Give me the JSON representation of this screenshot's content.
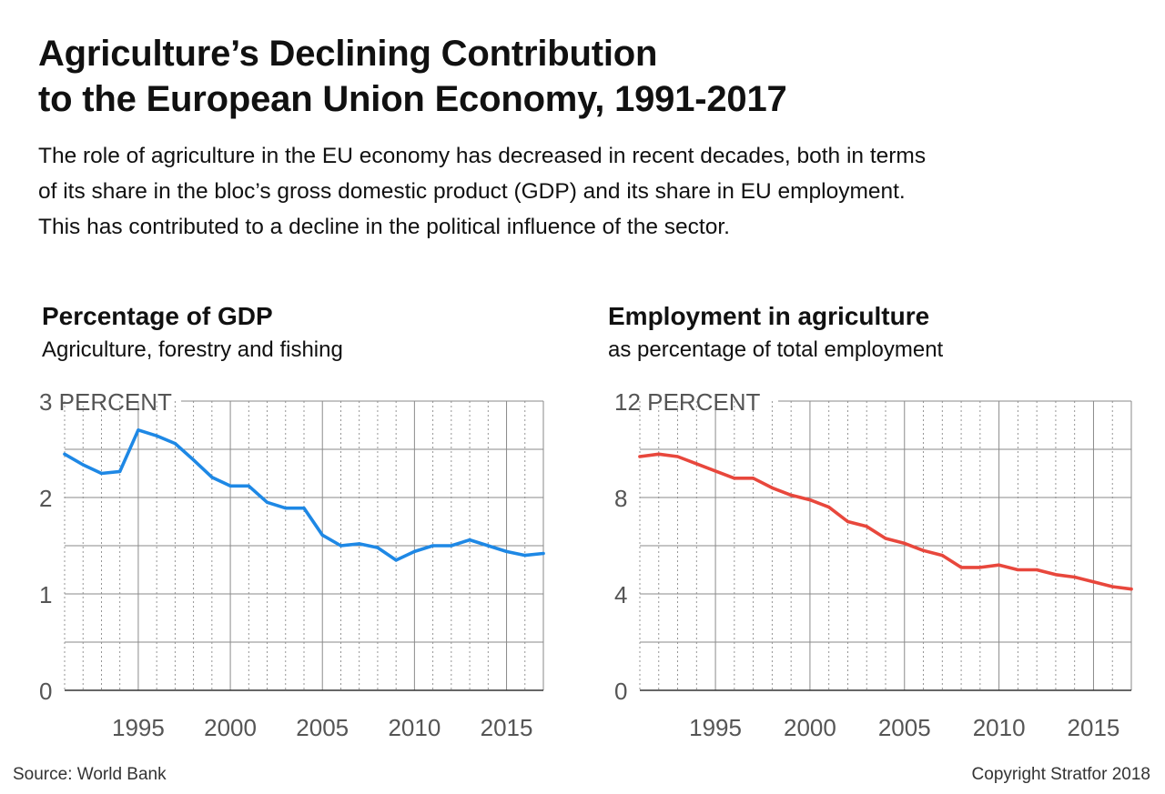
{
  "header": {
    "title_lines": [
      "Agriculture’s Declining Contribution",
      "to the European Union Economy, 1991-2017"
    ],
    "subtitle_lines": [
      "The role of agriculture in the EU economy has decreased in recent decades, both in terms",
      "of its share in the bloc’s gross domestic product (GDP) and its share in EU employment.",
      "This has contributed to a decline in the political influence of the sector."
    ]
  },
  "footer": {
    "source": "Source: World Bank",
    "copyright": "Copyright Stratfor 2018"
  },
  "colors": {
    "gdp_line": "#1e88e5",
    "employment_line": "#e8473c",
    "grid": "#8a8a8a",
    "axis_text": "#555555"
  },
  "chart_data": [
    {
      "type": "line",
      "title": "Percentage of GDP",
      "subtitle": "Agriculture, forestry and fishing",
      "ylabel": "",
      "xlabel": "",
      "x": [
        1991,
        1992,
        1993,
        1994,
        1995,
        1996,
        1997,
        1998,
        1999,
        2000,
        2001,
        2002,
        2003,
        2004,
        2005,
        2006,
        2007,
        2008,
        2009,
        2010,
        2011,
        2012,
        2013,
        2014,
        2015,
        2016,
        2017
      ],
      "series": [
        {
          "values": [
            2.45,
            2.34,
            2.25,
            2.27,
            2.7,
            2.64,
            2.56,
            2.39,
            2.21,
            2.12,
            2.12,
            1.95,
            1.89,
            1.89,
            1.61,
            1.5,
            1.52,
            1.48,
            1.35,
            1.44,
            1.5,
            1.5,
            1.56,
            1.5,
            1.44,
            1.4,
            1.42
          ]
        }
      ],
      "xlim": [
        1991,
        2017
      ],
      "ylim": [
        0,
        3
      ],
      "y_ticks": [
        {
          "value": 0,
          "label": "0"
        },
        {
          "value": 1,
          "label": "1"
        },
        {
          "value": 2,
          "label": "2"
        },
        {
          "value": 3,
          "label": "3 PERCENT"
        }
      ],
      "x_ticks": [
        {
          "value": 1995,
          "label": "1995"
        },
        {
          "value": 2000,
          "label": "2000"
        },
        {
          "value": 2005,
          "label": "2005"
        },
        {
          "value": 2010,
          "label": "2010"
        },
        {
          "value": 2015,
          "label": "2015"
        }
      ],
      "grid": true
    },
    {
      "type": "line",
      "title": "Employment in agriculture",
      "subtitle": "as percentage of total employment",
      "ylabel": "",
      "xlabel": "",
      "x": [
        1991,
        1992,
        1993,
        1994,
        1995,
        1996,
        1997,
        1998,
        1999,
        2000,
        2001,
        2002,
        2003,
        2004,
        2005,
        2006,
        2007,
        2008,
        2009,
        2010,
        2011,
        2012,
        2013,
        2014,
        2015,
        2016,
        2017
      ],
      "series": [
        {
          "values": [
            9.7,
            9.8,
            9.7,
            9.4,
            9.1,
            8.8,
            8.8,
            8.4,
            8.1,
            7.9,
            7.6,
            7.0,
            6.8,
            6.3,
            6.1,
            5.8,
            5.6,
            5.1,
            5.1,
            5.2,
            5.0,
            5.0,
            4.8,
            4.7,
            4.5,
            4.3,
            4.2
          ]
        }
      ],
      "xlim": [
        1991,
        2017
      ],
      "ylim": [
        0,
        12
      ],
      "y_ticks": [
        {
          "value": 0,
          "label": "0"
        },
        {
          "value": 4,
          "label": "4"
        },
        {
          "value": 8,
          "label": "8"
        },
        {
          "value": 12,
          "label": "12 PERCENT"
        }
      ],
      "x_ticks": [
        {
          "value": 1995,
          "label": "1995"
        },
        {
          "value": 2000,
          "label": "2000"
        },
        {
          "value": 2005,
          "label": "2005"
        },
        {
          "value": 2010,
          "label": "2010"
        },
        {
          "value": 2015,
          "label": "2015"
        }
      ],
      "grid": true
    }
  ]
}
